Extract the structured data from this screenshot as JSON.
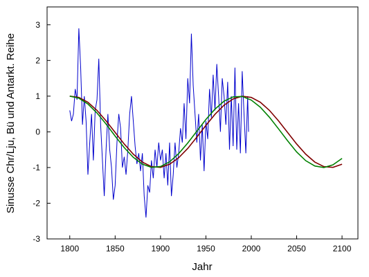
{
  "chart_data": {
    "type": "line",
    "xlabel": "Jahr",
    "ylabel": "Sinusse Chr/Lju, Bü und Antarkt. Reihe",
    "xlim": [
      1775,
      2117.5
    ],
    "ylim": [
      -3,
      3.5
    ],
    "xticks": [
      1800,
      1850,
      1900,
      1950,
      2000,
      2050,
      2100
    ],
    "yticks": [
      -3,
      -2,
      -1,
      0,
      1,
      2,
      3
    ],
    "grid": false,
    "series": [
      {
        "color": "#0000cc",
        "x": [
          1800,
          1802,
          1804,
          1806,
          1808,
          1810,
          1812,
          1814,
          1816,
          1818,
          1820,
          1822,
          1824,
          1826,
          1828,
          1830,
          1832,
          1834,
          1836,
          1838,
          1840,
          1842,
          1844,
          1846,
          1848,
          1850,
          1852,
          1854,
          1856,
          1858,
          1860,
          1862,
          1864,
          1866,
          1868,
          1870,
          1872,
          1874,
          1876,
          1878,
          1880,
          1882,
          1884,
          1886,
          1888,
          1890,
          1892,
          1894,
          1896,
          1898,
          1900,
          1902,
          1904,
          1906,
          1908,
          1910,
          1912,
          1914,
          1916,
          1918,
          1920,
          1922,
          1924,
          1926,
          1928,
          1930,
          1932,
          1934,
          1936,
          1938,
          1940,
          1942,
          1944,
          1946,
          1948,
          1950,
          1952,
          1954,
          1956,
          1958,
          1960,
          1962,
          1964,
          1966,
          1968,
          1970,
          1972,
          1974,
          1976,
          1978,
          1980,
          1982,
          1984,
          1986,
          1988,
          1990,
          1992,
          1994,
          1996,
          1997
        ],
        "values": [
          0.6,
          0.3,
          0.5,
          1.2,
          0.9,
          2.9,
          1.8,
          0.2,
          1.0,
          0.3,
          -1.2,
          -0.3,
          0.5,
          -0.8,
          0.6,
          0.9,
          2.05,
          0.2,
          -0.8,
          -1.8,
          -0.5,
          0.5,
          -0.5,
          -1.0,
          -1.9,
          -1.5,
          -0.3,
          0.5,
          0.1,
          -1.0,
          -0.7,
          -1.2,
          -0.5,
          0.5,
          1.0,
          0.3,
          -0.4,
          -0.9,
          -0.6,
          -1.1,
          -0.6,
          -1.8,
          -2.4,
          -1.5,
          -1.7,
          -0.8,
          -1.3,
          -0.5,
          -1.0,
          -0.3,
          -0.8,
          -0.5,
          -1.3,
          -0.6,
          -1.5,
          -0.3,
          -1.8,
          -1.2,
          -0.3,
          -1.0,
          -0.6,
          0.1,
          -0.3,
          0.8,
          -0.2,
          1.5,
          0.8,
          2.75,
          1.3,
          0.5,
          -0.3,
          0.5,
          -0.8,
          0.2,
          -1.1,
          0.3,
          -0.2,
          1.2,
          0.4,
          1.6,
          0.6,
          1.9,
          1.0,
          0.0,
          1.5,
          1.0,
          0.2,
          1.4,
          -0.5,
          1.0,
          -0.4,
          1.8,
          -0.5,
          0.8,
          -0.6,
          1.7,
          0.5,
          -0.6,
          1.0,
          0.0
        ]
      },
      {
        "color": "#800000",
        "x": [
          1800,
          1810,
          1820,
          1830,
          1840,
          1850,
          1860,
          1870,
          1880,
          1890,
          1900,
          1910,
          1920,
          1930,
          1940,
          1950,
          1960,
          1970,
          1980,
          1990,
          2000,
          2010,
          2020,
          2030,
          2040,
          2050,
          2060,
          2070,
          2080,
          2090,
          2100
        ],
        "values": [
          1.0,
          0.965,
          0.828,
          0.601,
          0.309,
          -0.017,
          -0.341,
          -0.626,
          -0.847,
          -0.973,
          -0.995,
          -0.908,
          -0.725,
          -0.465,
          -0.149,
          0.181,
          0.491,
          0.747,
          0.922,
          0.998,
          0.965,
          0.828,
          0.601,
          0.309,
          -0.017,
          -0.341,
          -0.626,
          -0.847,
          -0.973,
          -0.995,
          -0.908
        ]
      },
      {
        "color": "#008000",
        "x": [
          1800,
          1810,
          1820,
          1830,
          1840,
          1850,
          1860,
          1870,
          1880,
          1890,
          1900,
          1910,
          1920,
          1930,
          1940,
          1950,
          1960,
          1970,
          1980,
          1990,
          2000,
          2010,
          2020,
          2030,
          2040,
          2050,
          2060,
          2070,
          2080,
          2090,
          2100
        ],
        "values": [
          1.0,
          0.943,
          0.78,
          0.529,
          0.218,
          -0.118,
          -0.441,
          -0.714,
          -0.905,
          -0.995,
          -0.972,
          -0.84,
          -0.609,
          -0.313,
          0.017,
          0.347,
          0.636,
          0.86,
          0.979,
          0.991,
          0.89,
          0.689,
          0.409,
          0.084,
          -0.25,
          -0.565,
          -0.808,
          -0.957,
          -0.999,
          -0.925,
          -0.744
        ]
      }
    ]
  }
}
